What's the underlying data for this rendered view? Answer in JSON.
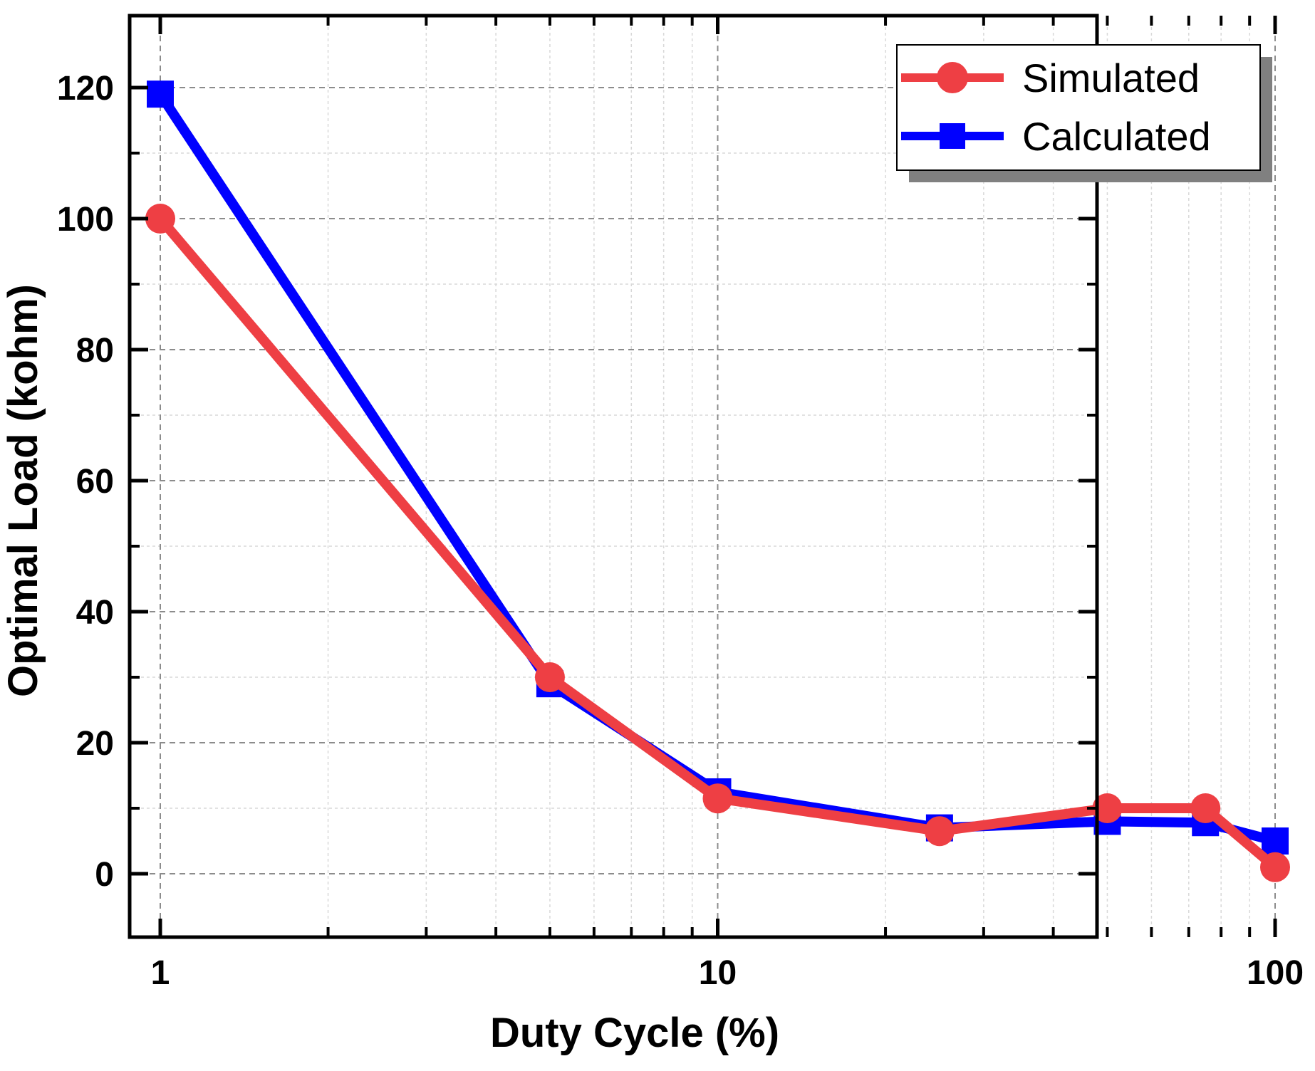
{
  "chart_data": {
    "type": "line",
    "title": "",
    "xlabel": "Duty Cycle (%)",
    "ylabel": "Optimal Load (kohm)",
    "xscale": "log",
    "xlim": [
      0.975,
      103
    ],
    "ylim": [
      -10,
      130
    ],
    "xticks": [
      {
        "value": 1,
        "label": "1"
      },
      {
        "value": 10,
        "label": "10"
      },
      {
        "value": 100,
        "label": "100"
      }
    ],
    "yticks": [
      {
        "value": 0,
        "label": "0"
      },
      {
        "value": 20,
        "label": "20"
      },
      {
        "value": 40,
        "label": "40"
      },
      {
        "value": 60,
        "label": "60"
      },
      {
        "value": 80,
        "label": "80"
      },
      {
        "value": 100,
        "label": "100"
      },
      {
        "value": 120,
        "label": "120"
      }
    ],
    "grid": true,
    "legend_position": "top-right",
    "series": [
      {
        "name": "Simulated",
        "color": "#ee3f44",
        "marker": "circle",
        "x": [
          1,
          5,
          10,
          25,
          50,
          75,
          100
        ],
        "y": [
          100,
          30,
          11.5,
          6.5,
          10,
          10,
          1
        ]
      },
      {
        "name": "Calculated",
        "color": "#0000ff",
        "marker": "square",
        "x": [
          1,
          5,
          10,
          25,
          50,
          75,
          100
        ],
        "y": [
          119,
          29,
          12.5,
          7,
          8,
          7.8,
          5
        ]
      }
    ]
  }
}
